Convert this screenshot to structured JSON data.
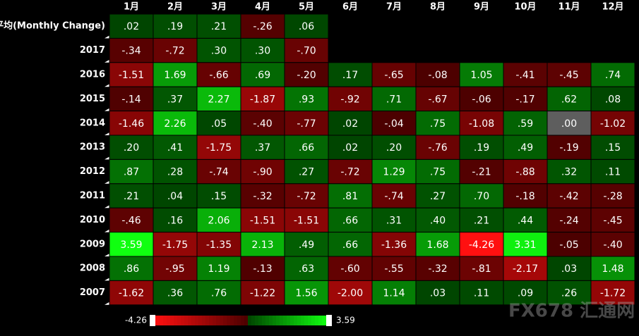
{
  "chart_data": {
    "type": "heatmap",
    "categories": [
      "1月",
      "2月",
      "3月",
      "4月",
      "5月",
      "6月",
      "7月",
      "8月",
      "9月",
      "10月",
      "11月",
      "12月"
    ],
    "rows": [
      "平均(Monthly Change)",
      "2017",
      "2016",
      "2015",
      "2014",
      "2013",
      "2012",
      "2011",
      "2010",
      "2009",
      "2008",
      "2007"
    ],
    "values": [
      [
        0.02,
        0.19,
        0.21,
        -0.26,
        0.06,
        null,
        null,
        null,
        null,
        null,
        null,
        null
      ],
      [
        -0.34,
        -0.72,
        0.3,
        0.3,
        -0.7,
        null,
        null,
        null,
        null,
        null,
        null,
        null
      ],
      [
        -1.51,
        1.69,
        -0.66,
        0.69,
        -0.2,
        0.17,
        -0.65,
        -0.08,
        1.05,
        -0.41,
        -0.45,
        0.74
      ],
      [
        -0.14,
        0.37,
        2.27,
        -1.87,
        0.93,
        -0.92,
        0.71,
        -0.67,
        -0.06,
        -0.17,
        0.62,
        0.08
      ],
      [
        -1.46,
        2.26,
        0.05,
        -0.4,
        -0.77,
        0.02,
        -0.04,
        0.75,
        -1.08,
        0.59,
        0.0,
        -1.02
      ],
      [
        0.2,
        0.41,
        -1.75,
        0.37,
        0.66,
        0.02,
        0.2,
        -0.76,
        0.19,
        0.49,
        -0.19,
        0.15
      ],
      [
        0.87,
        0.28,
        -0.74,
        -0.9,
        0.27,
        -0.72,
        1.29,
        0.75,
        -0.21,
        -0.88,
        0.32,
        0.11
      ],
      [
        0.21,
        0.04,
        0.15,
        -0.32,
        -0.72,
        0.81,
        -0.74,
        0.27,
        0.7,
        -0.18,
        -0.42,
        -0.28
      ],
      [
        -0.46,
        0.16,
        2.06,
        -1.51,
        -1.51,
        0.66,
        0.31,
        0.4,
        0.21,
        0.44,
        -0.24,
        -0.45
      ],
      [
        3.59,
        -1.75,
        -1.35,
        2.13,
        0.49,
        0.66,
        -1.36,
        1.68,
        -4.26,
        3.31,
        -0.05,
        -0.4
      ],
      [
        0.86,
        -0.95,
        1.19,
        -0.13,
        0.63,
        -0.6,
        -0.55,
        -0.32,
        -0.81,
        -2.17,
        0.03,
        1.48
      ],
      [
        -1.62,
        0.36,
        0.76,
        -1.22,
        1.56,
        -2.0,
        1.14,
        0.03,
        0.11,
        0.09,
        0.26,
        -1.72
      ]
    ],
    "value_labels": [
      [
        ".02",
        ".19",
        ".21",
        "-.26",
        ".06",
        null,
        null,
        null,
        null,
        null,
        null,
        null
      ],
      [
        "-.34",
        "-.72",
        ".30",
        ".30",
        "-.70",
        null,
        null,
        null,
        null,
        null,
        null,
        null
      ],
      [
        "-1.51",
        "1.69",
        "-.66",
        ".69",
        "-.20",
        ".17",
        "-.65",
        "-.08",
        "1.05",
        "-.41",
        "-.45",
        ".74"
      ],
      [
        "-.14",
        ".37",
        "2.27",
        "-1.87",
        ".93",
        "-.92",
        ".71",
        "-.67",
        "-.06",
        "-.17",
        ".62",
        ".08"
      ],
      [
        "-1.46",
        "2.26",
        ".05",
        "-.40",
        "-.77",
        ".02",
        "-.04",
        ".75",
        "-1.08",
        ".59",
        ".00",
        "-1.02"
      ],
      [
        ".20",
        ".41",
        "-1.75",
        ".37",
        ".66",
        ".02",
        ".20",
        "-.76",
        ".19",
        ".49",
        "-.19",
        ".15"
      ],
      [
        ".87",
        ".28",
        "-.74",
        "-.90",
        ".27",
        "-.72",
        "1.29",
        ".75",
        "-.21",
        "-.88",
        ".32",
        ".11"
      ],
      [
        ".21",
        ".04",
        ".15",
        "-.32",
        "-.72",
        ".81",
        "-.74",
        ".27",
        ".70",
        "-.18",
        "-.42",
        "-.28"
      ],
      [
        "-.46",
        ".16",
        "2.06",
        "-1.51",
        "-1.51",
        ".66",
        ".31",
        ".40",
        ".21",
        ".44",
        "-.24",
        "-.45"
      ],
      [
        "3.59",
        "-1.75",
        "-1.35",
        "2.13",
        ".49",
        ".66",
        "-1.36",
        "1.68",
        "-4.26",
        "3.31",
        "-.05",
        "-.40"
      ],
      [
        ".86",
        "-.95",
        "1.19",
        "-.13",
        ".63",
        "-.60",
        "-.55",
        "-.32",
        "-.81",
        "-2.17",
        ".03",
        "1.48"
      ],
      [
        "-1.62",
        ".36",
        ".76",
        "-1.22",
        "1.56",
        "-2.00",
        "1.14",
        ".03",
        ".11",
        ".09",
        ".26",
        "-1.72"
      ]
    ],
    "zlim": [
      -4.26,
      3.59
    ],
    "colors": {
      "negative": "#ff1010",
      "negative_dark": "#4a0000",
      "positive": "#10ff10",
      "positive_dark": "#004400",
      "zero": "#5e5e5e"
    },
    "watermark": "FX678 汇通网"
  }
}
